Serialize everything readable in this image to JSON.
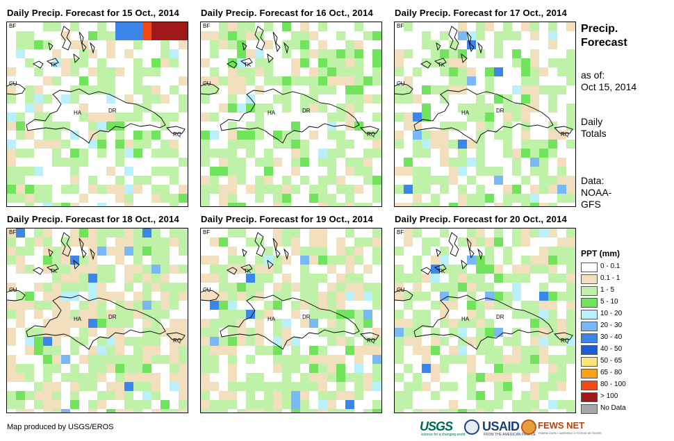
{
  "panels": [
    {
      "title": "Daily Precip. Forecast for 15 Oct., 2014"
    },
    {
      "title": "Daily Precip. Forecast for 16 Oct., 2014"
    },
    {
      "title": "Daily Precip. Forecast for 17 Oct., 2014"
    },
    {
      "title": "Daily Precip. Forecast for 18 Oct., 2014"
    },
    {
      "title": "Daily Precip. Forecast for 19 Oct., 2014"
    },
    {
      "title": "Daily Precip. Forecast for 20 Oct., 2014"
    }
  ],
  "map_labels": {
    "bf": "BF",
    "tk": "TK",
    "cu": "CU",
    "ha": "HA",
    "dr": "DR",
    "rq": "RQ"
  },
  "side": {
    "title_line1": "Precip.",
    "title_line2": "Forecast",
    "asof_line1": "as of:",
    "asof_line2": "Oct 15, 2014",
    "daily_line1": "Daily",
    "daily_line2": "Totals",
    "data_line1": "Data:",
    "data_line2": "NOAA-",
    "data_line3": "GFS"
  },
  "legend": {
    "title": "PPT (mm)",
    "items": [
      {
        "label": "0 - 0.1",
        "color": "#ffffff"
      },
      {
        "label": "0.1 - 1",
        "color": "#f2dfbd"
      },
      {
        "label": "1 - 5",
        "color": "#bff2a8"
      },
      {
        "label": "5 - 10",
        "color": "#72e35c"
      },
      {
        "label": "10 - 20",
        "color": "#b9f0fa"
      },
      {
        "label": "20 - 30",
        "color": "#7ab8f5"
      },
      {
        "label": "30 - 40",
        "color": "#3b86e8"
      },
      {
        "label": "40 - 50",
        "color": "#1c5dd6"
      },
      {
        "label": "50 - 65",
        "color": "#fde57a"
      },
      {
        "label": "65 - 80",
        "color": "#f7a21b"
      },
      {
        "label": "80 - 100",
        "color": "#f24a16"
      },
      {
        "label": "> 100",
        "color": "#a01818"
      },
      {
        "label": "No Data",
        "color": "#a6a6a6"
      }
    ]
  },
  "credit": "Map produced by USGS/EROS",
  "logos": {
    "usgs": "USGS",
    "usgs_tagline": "science for a changing world",
    "usaid": "USAID",
    "usaid_tagline": "FROM THE AMERICAN PEOPLE",
    "fews": "FEWS NET",
    "fews_tagline": "FAMINE EARLY WARNING SYSTEMS NETWORK"
  }
}
